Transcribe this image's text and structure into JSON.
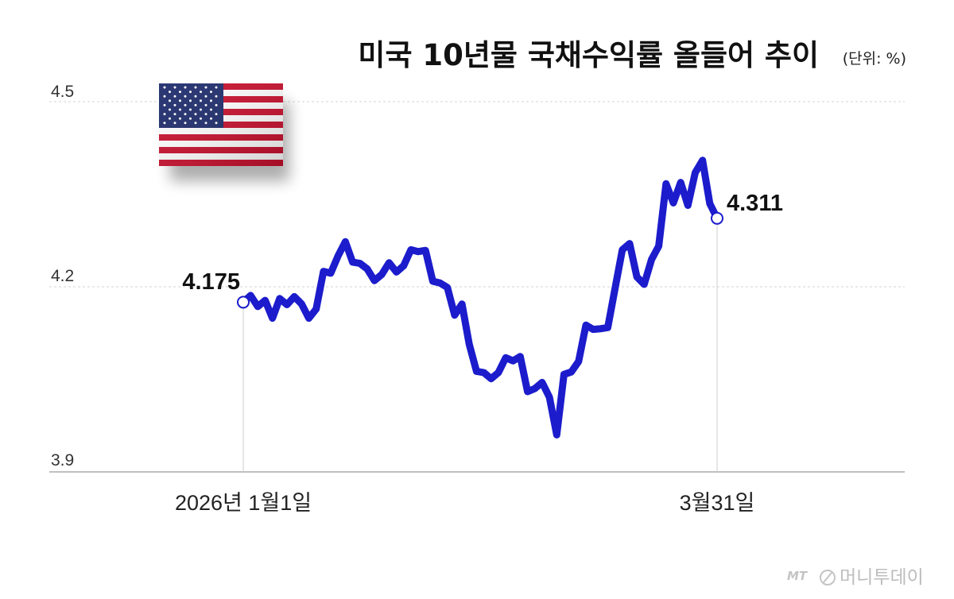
{
  "header": {
    "title": "미국 10년물 국채수익률 올들어 추이",
    "unit": "(단위: %)"
  },
  "chart_data": {
    "type": "line",
    "title": "미국 10년물 국채수익률 올들어 추이",
    "unit": "(단위: %)",
    "xlabel": "",
    "ylabel": "",
    "ylim": [
      3.9,
      4.5
    ],
    "yticks": [
      "4.5",
      "4.2",
      "3.9"
    ],
    "xtick_labels": [
      "2026년 1월1일",
      "3월31일"
    ],
    "grid": true,
    "series": [
      {
        "values": [
          4.175,
          4.186,
          4.168,
          4.178,
          4.149,
          4.181,
          4.171,
          4.184,
          4.172,
          4.149,
          4.164,
          4.225,
          4.222,
          4.25,
          4.273,
          4.24,
          4.238,
          4.229,
          4.21,
          4.22,
          4.239,
          4.224,
          4.234,
          4.26,
          4.257,
          4.259,
          4.209,
          4.206,
          4.199,
          4.154,
          4.172,
          4.107,
          4.063,
          4.061,
          4.051,
          4.061,
          4.085,
          4.08,
          4.087,
          4.03,
          4.035,
          4.045,
          4.021,
          3.96,
          4.058,
          4.062,
          4.079,
          4.138,
          4.131,
          4.132,
          4.134,
          4.197,
          4.26,
          4.27,
          4.216,
          4.204,
          4.244,
          4.266,
          4.367,
          4.336,
          4.369,
          4.332,
          4.385,
          4.405,
          4.335,
          4.311
        ],
        "color": "#1c1ccc"
      }
    ],
    "start_label": "4.175",
    "end_label": "4.311"
  },
  "icons": {
    "flag": "us-flag-icon",
    "logo": "mt-logo-icon"
  },
  "watermark": {
    "brand": "MT",
    "text": "머니투데이"
  },
  "colors": {
    "line": "#1c1ccc",
    "grid": "#d6d6d6",
    "axis": "#9a9a9a"
  }
}
